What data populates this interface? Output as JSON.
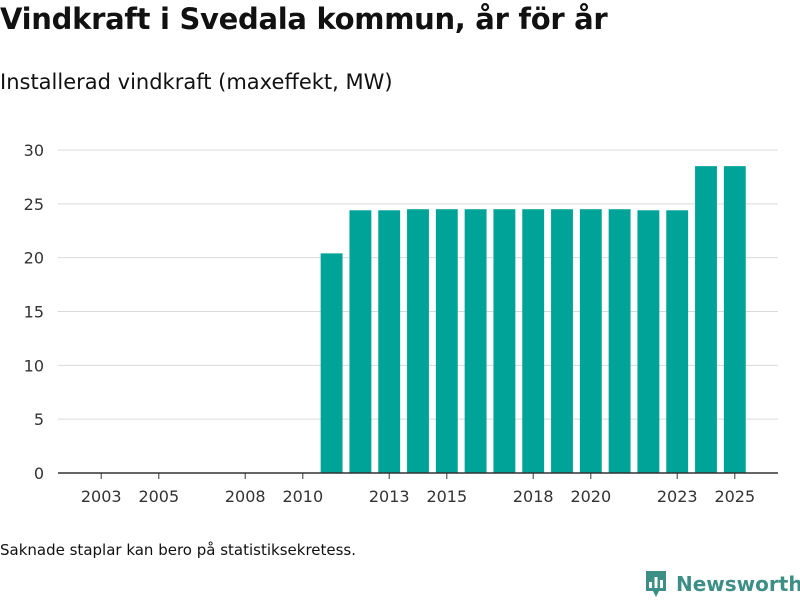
{
  "header": {
    "title": "Vindkraft i Svedala kommun, år för år",
    "subtitle": "Installerad vindkraft (maxeffekt, MW)"
  },
  "footer": {
    "note": "Saknade staplar kan bero på statistiksekretess.",
    "brand": "Newsworthy"
  },
  "colors": {
    "bar": "#00a398",
    "grid": "#d9d9d9",
    "axis": "#333333",
    "brand": "#3d8f86"
  },
  "chart_data": {
    "type": "bar",
    "title": "Vindkraft i Svedala kommun, år för år",
    "subtitle": "Installerad vindkraft (maxeffekt, MW)",
    "xlabel": "",
    "ylabel": "",
    "ylim": [
      0,
      30
    ],
    "yticks": [
      0,
      5,
      10,
      15,
      20,
      25,
      30
    ],
    "xlim": [
      2001.5,
      2026.5
    ],
    "xticks": [
      2003,
      2005,
      2008,
      2010,
      2013,
      2015,
      2018,
      2020,
      2023,
      2025
    ],
    "grid": true,
    "x": [
      2011,
      2012,
      2013,
      2014,
      2015,
      2016,
      2017,
      2018,
      2019,
      2020,
      2021,
      2022,
      2023,
      2024,
      2025
    ],
    "values": [
      20.4,
      24.4,
      24.4,
      24.5,
      24.5,
      24.5,
      24.5,
      24.5,
      24.5,
      24.5,
      24.5,
      24.4,
      24.4,
      28.5,
      28.5
    ]
  }
}
